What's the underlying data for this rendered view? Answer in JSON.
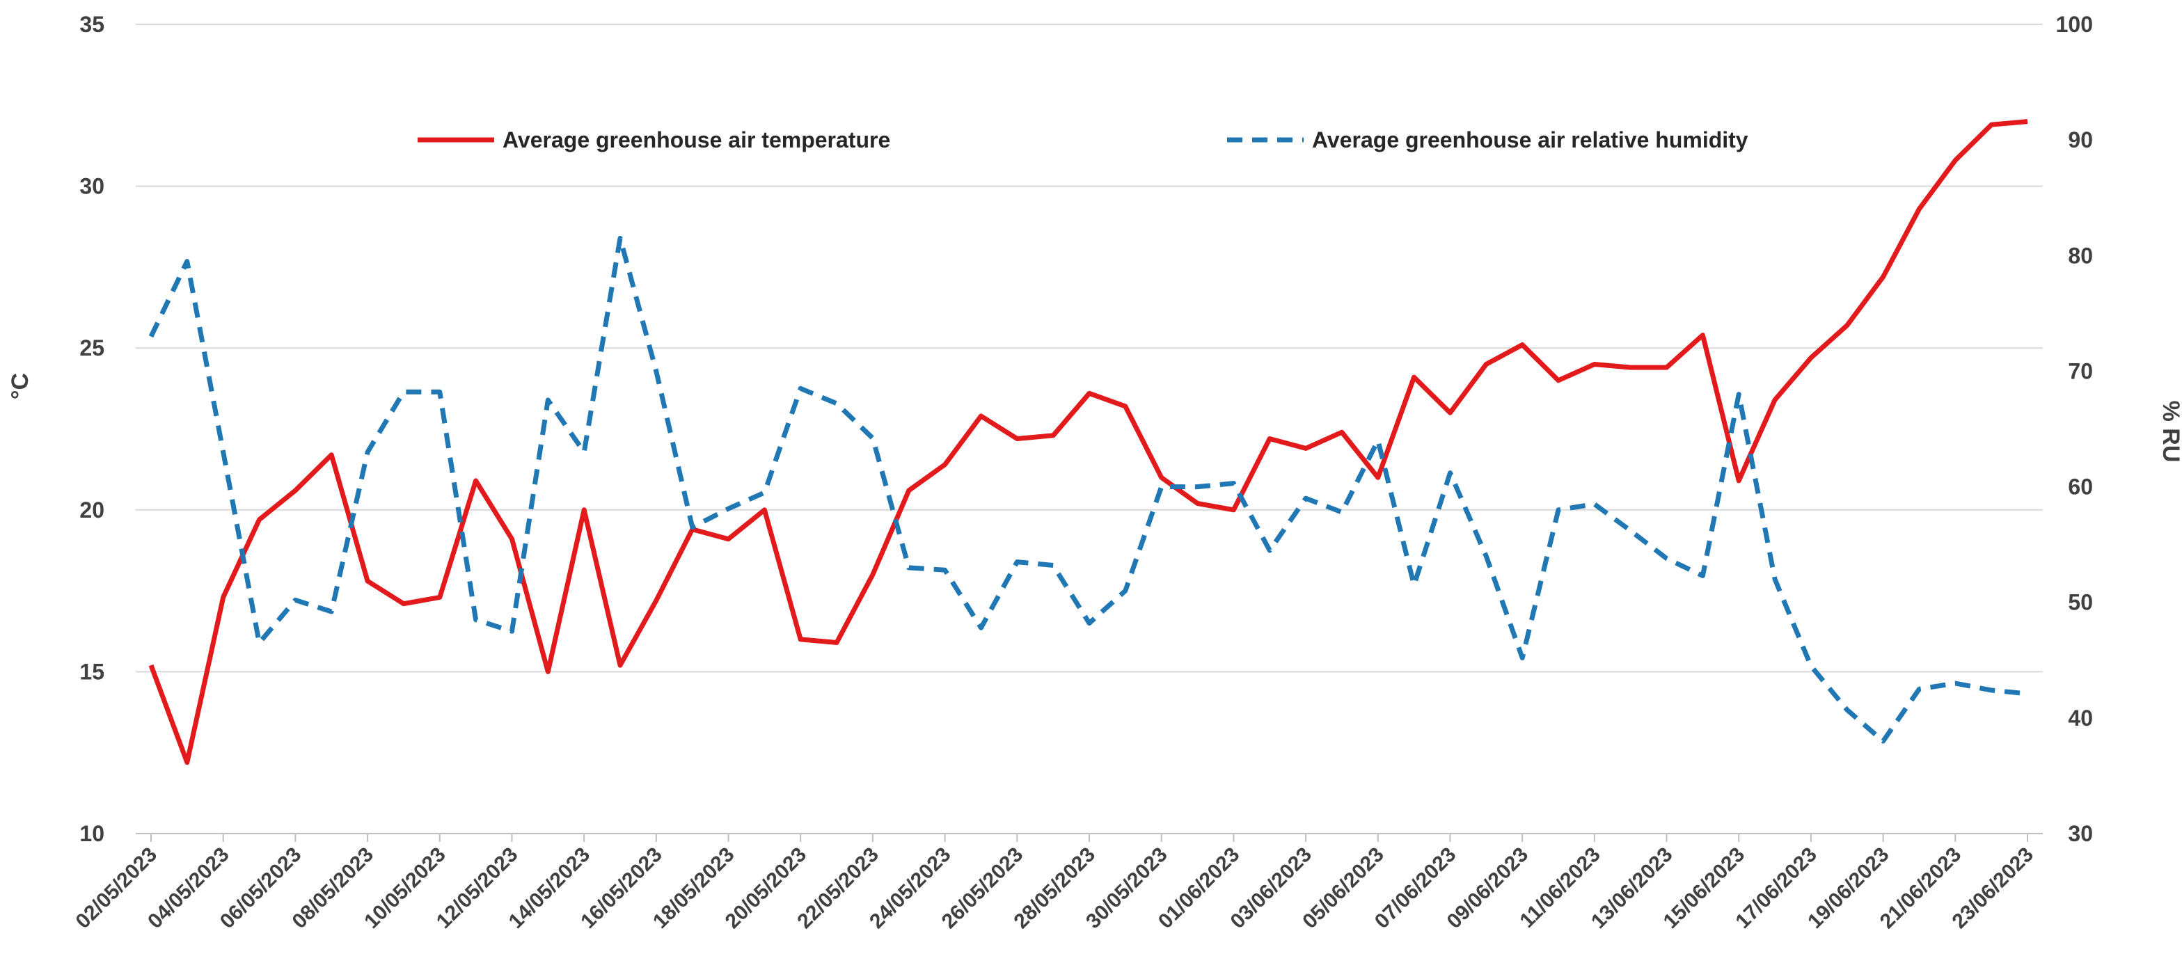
{
  "chart_data": {
    "type": "line",
    "x": [
      "02/05/2023",
      "03/05/2023",
      "04/05/2023",
      "05/05/2023",
      "06/05/2023",
      "07/05/2023",
      "08/05/2023",
      "09/05/2023",
      "10/05/2023",
      "11/05/2023",
      "12/05/2023",
      "13/05/2023",
      "14/05/2023",
      "15/05/2023",
      "16/05/2023",
      "17/05/2023",
      "18/05/2023",
      "19/05/2023",
      "20/05/2023",
      "21/05/2023",
      "22/05/2023",
      "23/05/2023",
      "24/05/2023",
      "25/05/2023",
      "26/05/2023",
      "27/05/2023",
      "28/05/2023",
      "29/05/2023",
      "30/05/2023",
      "31/05/2023",
      "01/06/2023",
      "02/06/2023",
      "03/06/2023",
      "04/06/2023",
      "05/06/2023",
      "06/06/2023",
      "07/06/2023",
      "08/06/2023",
      "09/06/2023",
      "10/06/2023",
      "11/06/2023",
      "12/06/2023",
      "13/06/2023",
      "14/06/2023",
      "15/06/2023",
      "16/06/2023",
      "17/06/2023",
      "18/06/2023",
      "19/06/2023",
      "20/06/2023",
      "21/06/2023",
      "22/06/2023",
      "23/06/2023"
    ],
    "tick_labels": [
      "02/05/2023",
      "04/05/2023",
      "06/05/2023",
      "08/05/2023",
      "10/05/2023",
      "12/05/2023",
      "14/05/2023",
      "16/05/2023",
      "18/05/2023",
      "20/05/2023",
      "22/05/2023",
      "24/05/2023",
      "26/05/2023",
      "28/05/2023",
      "30/05/2023",
      "01/06/2023",
      "03/06/2023",
      "05/06/2023",
      "07/06/2023",
      "09/06/2023",
      "11/06/2023",
      "13/06/2023",
      "15/06/2023",
      "17/06/2023",
      "19/06/2023",
      "21/06/2023",
      "23/06/2023"
    ],
    "series": [
      {
        "name": "Average greenhouse air temperature",
        "axis": "left",
        "color": "#e31a1c",
        "style": "solid",
        "values": [
          15.2,
          12.2,
          17.3,
          19.7,
          20.6,
          21.7,
          17.8,
          17.1,
          17.3,
          20.9,
          19.1,
          15.0,
          20.0,
          15.2,
          17.2,
          19.4,
          19.1,
          20.0,
          16.0,
          15.9,
          18.0,
          20.6,
          21.4,
          22.9,
          22.2,
          22.3,
          23.6,
          23.2,
          21.0,
          20.2,
          20.0,
          22.2,
          21.9,
          22.4,
          21.0,
          24.1,
          23.0,
          24.5,
          25.1,
          24.0,
          24.5,
          24.4,
          24.4,
          25.4,
          20.9,
          23.4,
          24.7,
          25.7,
          27.2,
          29.3,
          30.8,
          31.9,
          32.0
        ]
      },
      {
        "name": "Average greenhouse air relative humidity",
        "axis": "right",
        "color": "#1f77b4",
        "style": "dashed",
        "values": [
          73,
          79.5,
          63,
          46.5,
          50.2,
          49.2,
          63,
          68.2,
          68.2,
          48.5,
          47.5,
          67.5,
          63,
          81.5,
          70,
          56.5,
          58.1,
          59.5,
          68.5,
          67.2,
          64.2,
          53,
          52.8,
          47.8,
          53.5,
          53.2,
          48.2,
          51,
          60,
          60,
          60.3,
          54.5,
          59,
          57.8,
          64,
          51.5,
          61.2,
          54,
          45.2,
          58,
          58.5,
          56.2,
          53.8,
          52.3,
          68,
          52,
          44.5,
          40.7,
          38,
          42.5,
          43,
          42.4,
          42.1
        ]
      }
    ],
    "ylabel_left": "°C",
    "ylabel_right": "% RU",
    "ylim_left": [
      10,
      35
    ],
    "ylim_right": [
      30,
      100
    ],
    "yticks_left": [
      10,
      15,
      20,
      25,
      30,
      35
    ],
    "yticks_right": [
      30,
      40,
      50,
      60,
      70,
      80,
      90,
      100
    ],
    "grid": true,
    "legend_position": "top"
  }
}
